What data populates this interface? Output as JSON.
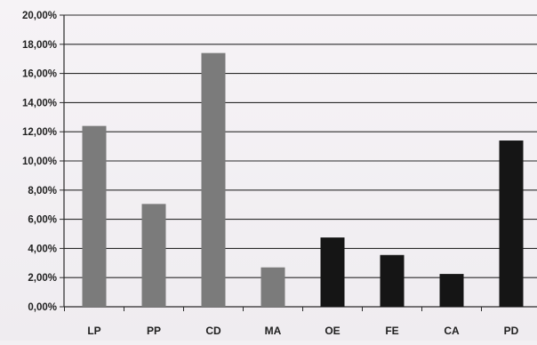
{
  "chart_data": {
    "type": "bar",
    "categories": [
      "LP",
      "PP",
      "CD",
      "MA",
      "OE",
      "FE",
      "CA",
      "PD"
    ],
    "values": [
      12.4,
      7.05,
      17.4,
      2.7,
      4.75,
      3.55,
      2.25,
      11.4
    ],
    "bar_colors": [
      "#7b7b7b",
      "#7b7b7b",
      "#7b7b7b",
      "#7b7b7b",
      "#151515",
      "#151515",
      "#151515",
      "#151515"
    ],
    "ylim": [
      0,
      20
    ],
    "yticks": [
      "0,00%",
      "2,00%",
      "4,00%",
      "6,00%",
      "8,00%",
      "10,00%",
      "12,00%",
      "14,00%",
      "16,00%",
      "18,00%",
      "20,00%"
    ],
    "title": "",
    "xlabel": "",
    "ylabel": "",
    "grid": true,
    "legend": "none"
  }
}
